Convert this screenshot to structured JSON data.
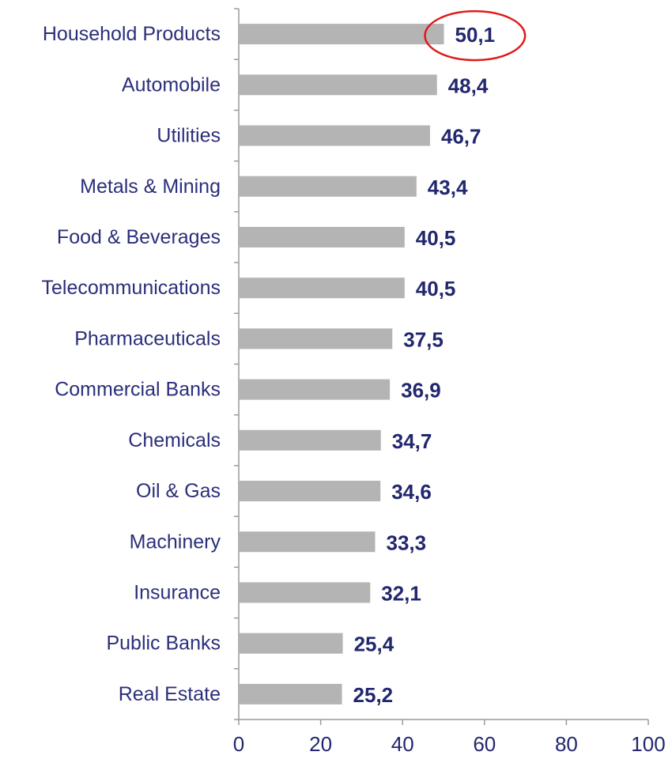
{
  "chart_data": {
    "type": "bar",
    "orientation": "horizontal",
    "title": "",
    "xlabel": "",
    "ylabel": "",
    "categories": [
      "Household Products",
      "Automobile",
      "Utilities",
      "Metals & Mining",
      "Food & Beverages",
      "Telecommunications",
      "Pharmaceuticals",
      "Commercial Banks",
      "Chemicals",
      "Oil & Gas",
      "Machinery",
      "Insurance",
      "Public Banks",
      "Real Estate"
    ],
    "values": [
      50.1,
      48.4,
      46.7,
      43.4,
      40.5,
      40.5,
      37.5,
      36.9,
      34.7,
      34.6,
      33.3,
      32.1,
      25.4,
      25.2
    ],
    "value_labels": [
      "50,1",
      "48,4",
      "46,7",
      "43,4",
      "40,5",
      "40,5",
      "37,5",
      "36,9",
      "34,7",
      "34,6",
      "33,3",
      "32,1",
      "25,4",
      "25,2"
    ],
    "xlim": [
      0,
      100
    ],
    "xticks": [
      0,
      20,
      40,
      60,
      80,
      100
    ],
    "xtick_labels": [
      "0",
      "20",
      "40",
      "60",
      "80",
      "100"
    ],
    "grid": false,
    "highlighted_category": "Household Products",
    "colors": {
      "bar": "#b4b4b4",
      "label_text": "#2b2f7a",
      "value_text": "#22276e",
      "highlight_ring": "#e01a1a"
    }
  }
}
